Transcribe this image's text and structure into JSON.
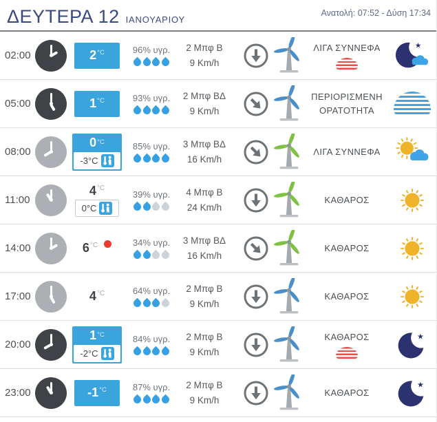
{
  "header": {
    "day_title": "ΔΕΥΤΕΡΑ 12",
    "month": "ΙΑΝΟΥΑΡΙΟΥ",
    "sun_times": "Ανατολή: 07:52 - Δύση 17:34"
  },
  "colors": {
    "accent_blue": "#3aa4dd",
    "title_navy": "#394a7e",
    "drop_blue": "#36a1e2",
    "drop_gray": "#ccd3d9",
    "turbine_blue": "#4b8fc8",
    "turbine_green": "#7fc142",
    "sun_yellow": "#f0b42b",
    "moon_navy": "#2c3170",
    "cloud_blue": "#3fa3e8",
    "frost_red": "#ef4b47",
    "arrow_gray": "#6d7276"
  },
  "rows": [
    {
      "time": "02:00",
      "clock_style": "dark",
      "temp": "2",
      "temp_unit": "°C",
      "temp_style": "box",
      "feels": null,
      "max_marker": false,
      "humidity": "96% υγρ.",
      "drops_filled": 4,
      "drops_total": 4,
      "wind_bft": "2 Μπφ Β",
      "wind_kmh": "9 Km/h",
      "wind_dir": "S",
      "turbine_color": "blue",
      "condition": "ΛΙΓΑ ΣΥΝΝΕΦΑ",
      "condition_badge": "frost",
      "sky_icon": "moon-star-cloud"
    },
    {
      "time": "05:00",
      "clock_style": "dark",
      "temp": "1",
      "temp_unit": "°C",
      "temp_style": "box",
      "feels": null,
      "max_marker": false,
      "humidity": "93% υγρ.",
      "drops_filled": 4,
      "drops_total": 4,
      "wind_bft": "2 Μπφ ΒΔ",
      "wind_kmh": "9 Km/h",
      "wind_dir": "SE",
      "turbine_color": "blue",
      "condition": "ΠΕΡΙΟΡΙΣΜΕΝΗ ΟΡΑΤΟΤΗΤΑ",
      "condition_badge": null,
      "sky_icon": "fog-cloud"
    },
    {
      "time": "08:00",
      "clock_style": "light",
      "temp": "0",
      "temp_unit": "°C",
      "temp_style": "box-feels",
      "feels": "-3°C",
      "max_marker": false,
      "humidity": "85% υγρ.",
      "drops_filled": 4,
      "drops_total": 4,
      "wind_bft": "3 Μπφ ΒΔ",
      "wind_kmh": "16 Km/h",
      "wind_dir": "SE",
      "turbine_color": "green",
      "condition": "ΛΙΓΑ ΣΥΝΝΕΦΑ",
      "condition_badge": null,
      "sky_icon": "sun-cloud"
    },
    {
      "time": "11:00",
      "clock_style": "light",
      "temp": "4",
      "temp_unit": "°C",
      "temp_style": "plain-feels",
      "feels": "0°C",
      "max_marker": false,
      "humidity": "39% υγρ.",
      "drops_filled": 2,
      "drops_total": 4,
      "wind_bft": "4 Μπφ Β",
      "wind_kmh": "24 Km/h",
      "wind_dir": "S",
      "turbine_color": "green",
      "condition": "ΚΑΘΑΡΟΣ",
      "condition_badge": null,
      "sky_icon": "sun"
    },
    {
      "time": "14:00",
      "clock_style": "light",
      "temp": "6",
      "temp_unit": "°C",
      "temp_style": "plain",
      "feels": null,
      "max_marker": true,
      "humidity": "34% υγρ.",
      "drops_filled": 2,
      "drops_total": 4,
      "wind_bft": "3 Μπφ ΒΔ",
      "wind_kmh": "16 Km/h",
      "wind_dir": "SE",
      "turbine_color": "green",
      "condition": "ΚΑΘΑΡΟΣ",
      "condition_badge": null,
      "sky_icon": "sun"
    },
    {
      "time": "17:00",
      "clock_style": "light",
      "temp": "4",
      "temp_unit": "°C",
      "temp_style": "plain",
      "feels": null,
      "max_marker": false,
      "humidity": "64% υγρ.",
      "drops_filled": 3,
      "drops_total": 4,
      "wind_bft": "2 Μπφ Β",
      "wind_kmh": "9 Km/h",
      "wind_dir": "S",
      "turbine_color": "blue",
      "condition": "ΚΑΘΑΡΟΣ",
      "condition_badge": null,
      "sky_icon": "sun"
    },
    {
      "time": "20:00",
      "clock_style": "dark",
      "temp": "1",
      "temp_unit": "°C",
      "temp_style": "box-feels",
      "feels": "-2°C",
      "max_marker": false,
      "humidity": "84% υγρ.",
      "drops_filled": 4,
      "drops_total": 4,
      "wind_bft": "2 Μπφ Β",
      "wind_kmh": "9 Km/h",
      "wind_dir": "S",
      "turbine_color": "blue",
      "condition": "ΚΑΘΑΡΟΣ",
      "condition_badge": "frost",
      "sky_icon": "moon-star"
    },
    {
      "time": "23:00",
      "clock_style": "dark",
      "temp": "-1",
      "temp_unit": "°C",
      "temp_style": "box",
      "feels": null,
      "max_marker": false,
      "humidity": "87% υγρ.",
      "drops_filled": 4,
      "drops_total": 4,
      "wind_bft": "2 Μπφ Β",
      "wind_kmh": "9 Km/h",
      "wind_dir": "S",
      "turbine_color": "blue",
      "condition": "ΚΑΘΑΡΟΣ",
      "condition_badge": null,
      "sky_icon": "moon-star"
    }
  ]
}
